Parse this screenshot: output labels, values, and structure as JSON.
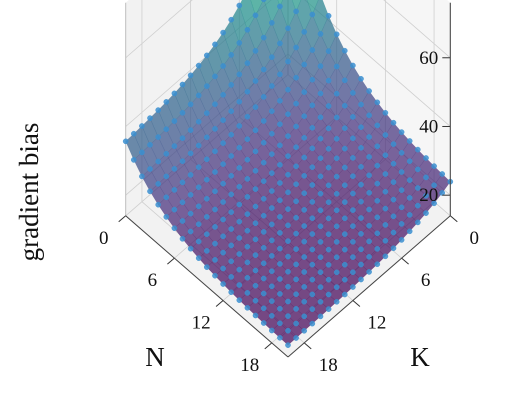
{
  "chart_data": {
    "type": "surface3d",
    "zlabel": "gradient bias",
    "xlabel": "N",
    "ylabel": "K",
    "x_ticks": [
      "0",
      "6",
      "12",
      "18"
    ],
    "y_ticks": [
      "0",
      "6",
      "12",
      "18"
    ],
    "z_ticks": [
      "20",
      "40",
      "60"
    ],
    "xlim": [
      0,
      20
    ],
    "ylim": [
      0,
      20
    ],
    "zlim": [
      14,
      76
    ],
    "colormap": "viridis",
    "point_color": "#3b8fd0",
    "grid": true,
    "grid_n": 21,
    "peak_value": 73,
    "edge_value_max_n": 35,
    "edge_value_max_k": 23,
    "floor_value": 17
  }
}
